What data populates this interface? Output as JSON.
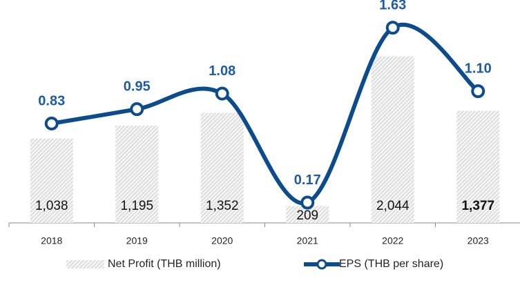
{
  "chart_data": {
    "type": "bar",
    "categories": [
      "2018",
      "2019",
      "2020",
      "2021",
      "2022",
      "2023"
    ],
    "series": [
      {
        "name": "Net Profit (THB million)",
        "type": "bar",
        "color": "#c8c8c8",
        "values": [
          1038,
          1195,
          1352,
          209,
          2044,
          1377
        ],
        "value_labels": [
          "1,038",
          "1,195",
          "1,352",
          "209",
          "2,044",
          "1,377"
        ]
      },
      {
        "name": "EPS (THB per share)",
        "type": "line",
        "axis": "y2",
        "color": "#0d4c8c",
        "values": [
          0.83,
          0.95,
          1.08,
          0.17,
          1.63,
          1.1
        ],
        "value_labels": [
          "0.83",
          "0.95",
          "1.08",
          "0.17",
          "1.63",
          "1.10"
        ]
      }
    ],
    "ylim": [
      0,
      2500
    ],
    "y2lim": [
      0,
      1.7
    ]
  }
}
